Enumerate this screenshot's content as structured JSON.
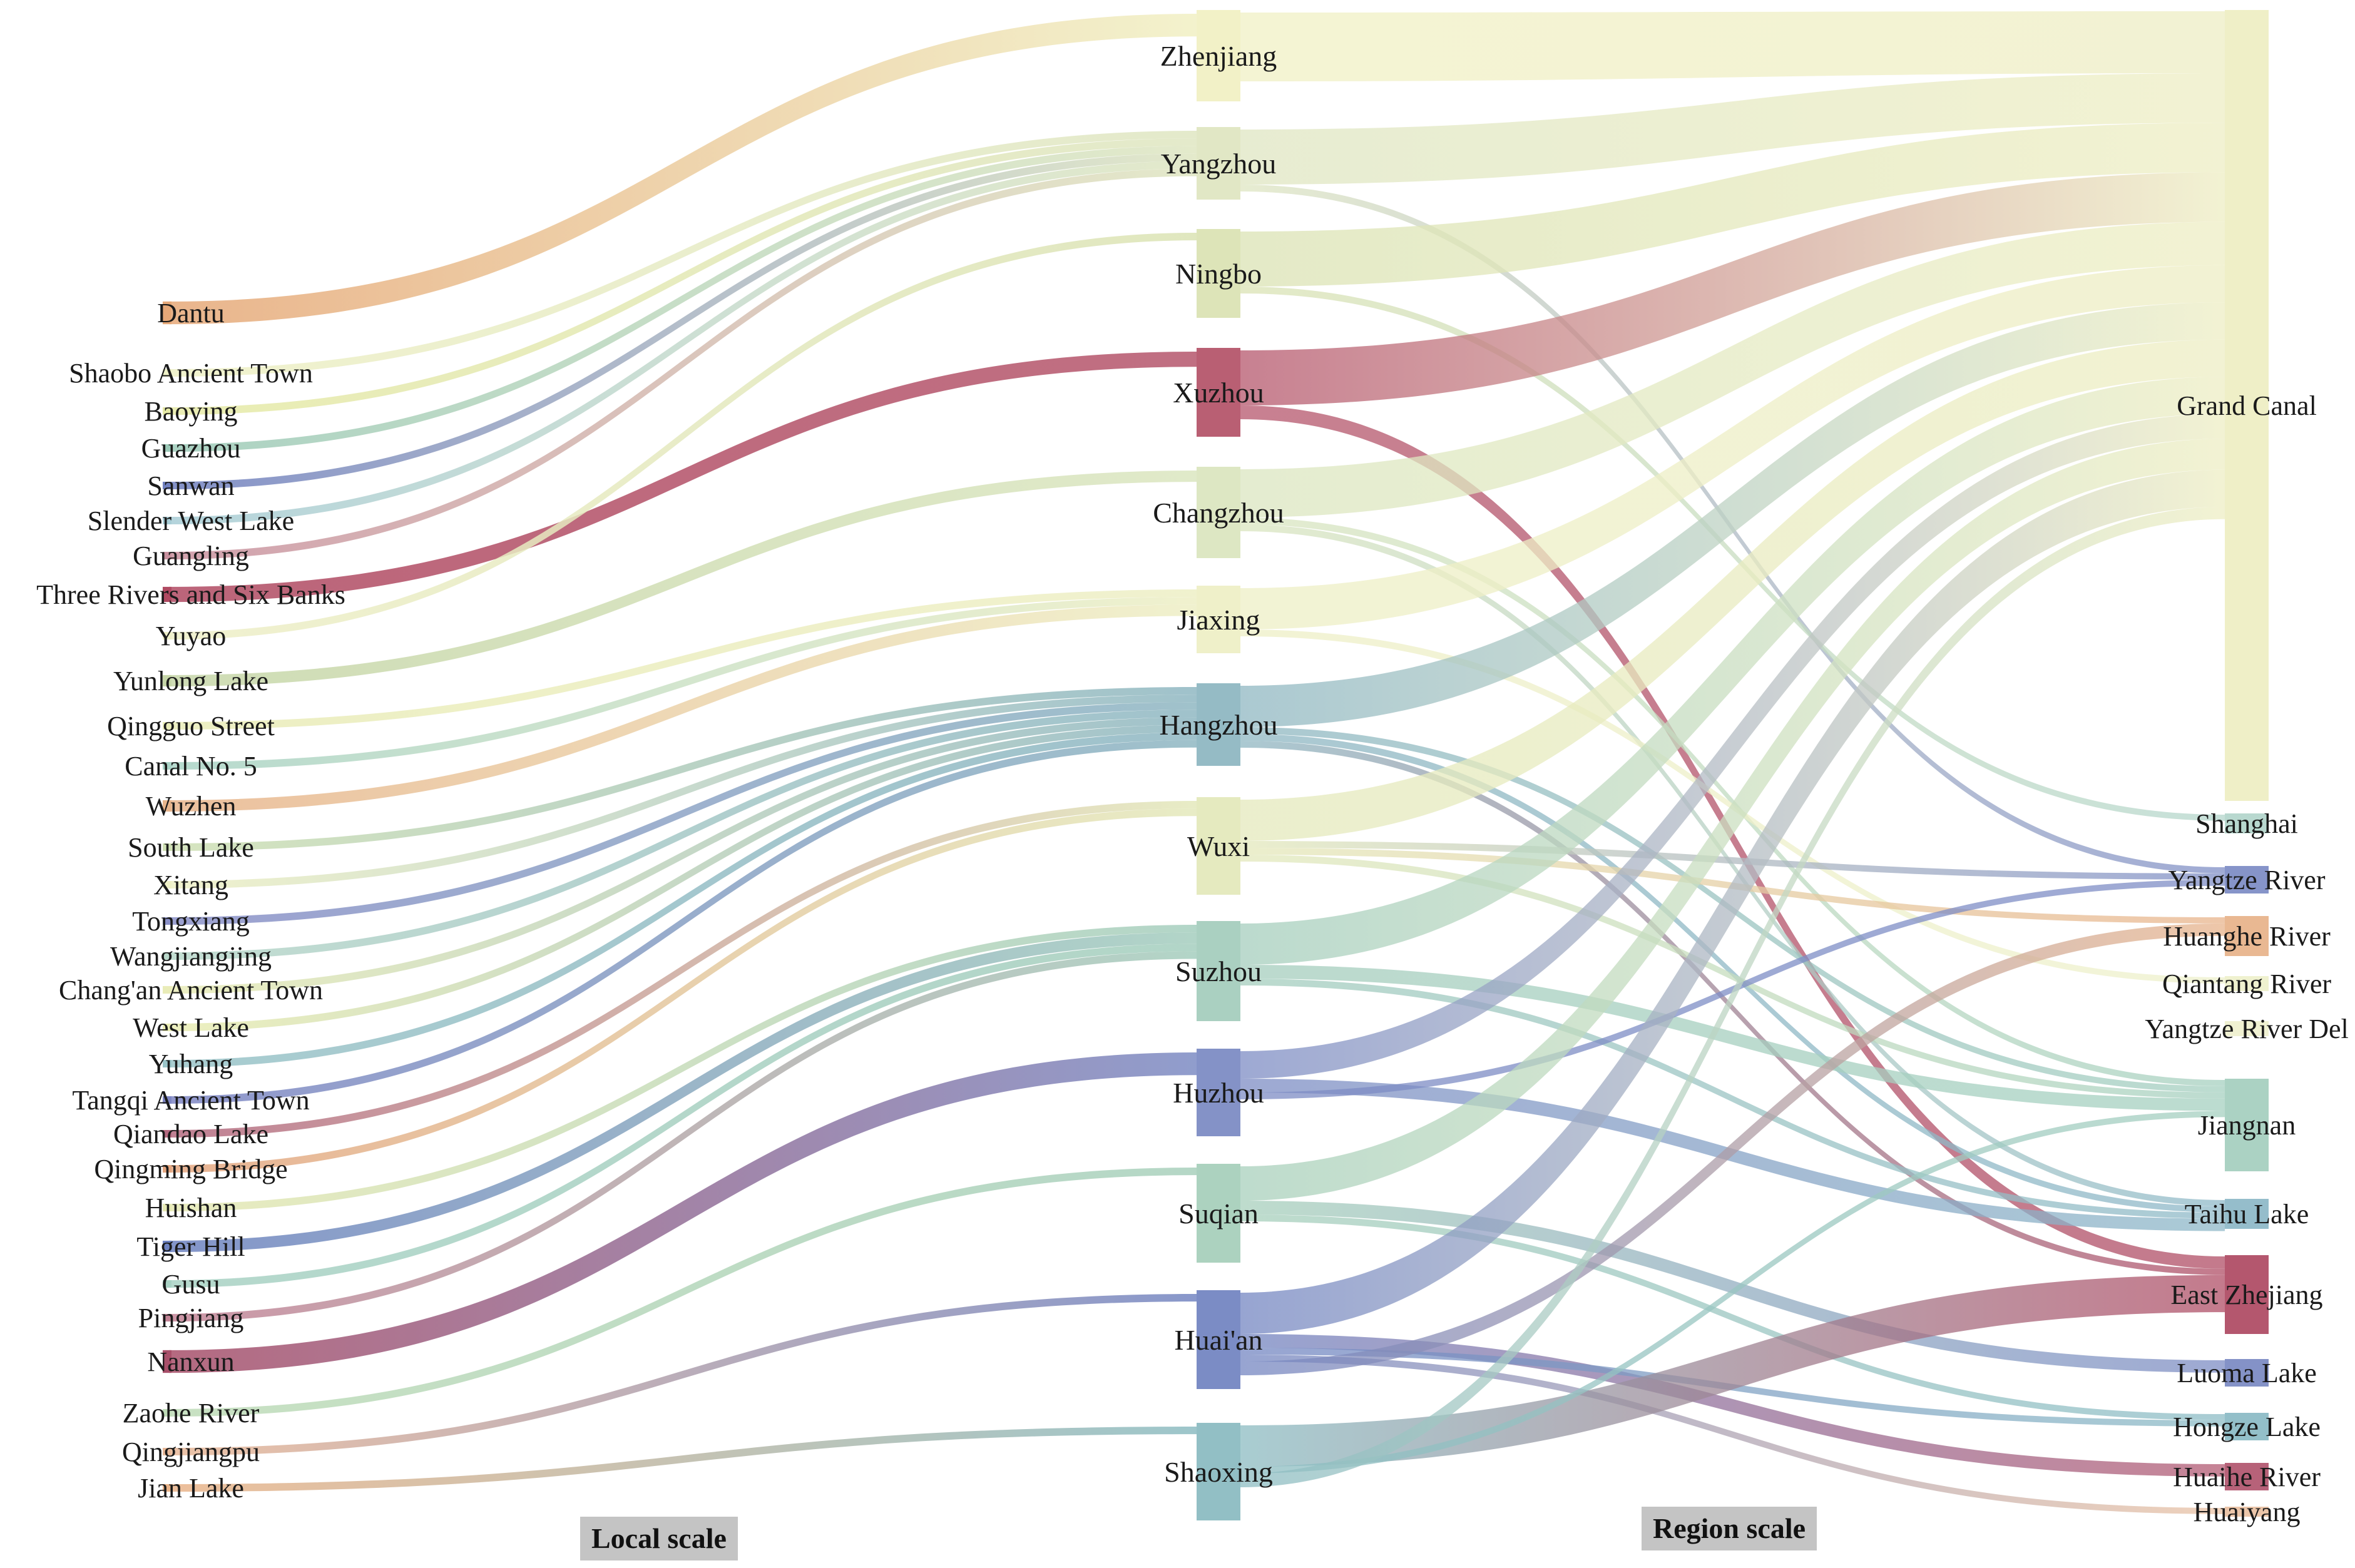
{
  "local_nodes": [
    {
      "id": "Dantu",
      "label": "Dantu",
      "color": "#e6a878"
    },
    {
      "id": "Shaobo",
      "label": "Shaobo Ancient Town",
      "color": "#eef0c6"
    },
    {
      "id": "Baoying",
      "label": "Baoying",
      "color": "#e6eaa6"
    },
    {
      "id": "Guazhou",
      "label": "Guazhou",
      "color": "#9ccab8"
    },
    {
      "id": "Sanwan",
      "label": "Sanwan",
      "color": "#6f7fbf"
    },
    {
      "id": "SlenderWestLake",
      "label": "Slender West Lake",
      "color": "#a8cdd6"
    },
    {
      "id": "Guangling",
      "label": "Guangling",
      "color": "#c9909e"
    },
    {
      "id": "ThreeRivers",
      "label": "Three Rivers and Six Banks",
      "color": "#b04a62"
    },
    {
      "id": "Yuyao",
      "label": "Yuyao",
      "color": "#eeefc8"
    },
    {
      "id": "YunlongLake",
      "label": "Yunlong Lake",
      "color": "#c6d6a8"
    },
    {
      "id": "QingguoStreet",
      "label": "Qingguo Street",
      "color": "#e9ecb8"
    },
    {
      "id": "CanalNo5",
      "label": "Canal No. 5",
      "color": "#a9d3c6"
    },
    {
      "id": "Wuzhen",
      "label": "Wuzhen",
      "color": "#e8b58c"
    },
    {
      "id": "SouthLake",
      "label": "South Lake",
      "color": "#cfe0b4"
    },
    {
      "id": "Xitang",
      "label": "Xitang",
      "color": "#eef0c6"
    },
    {
      "id": "Tongxiang",
      "label": "Tongxiang",
      "color": "#8a90c8"
    },
    {
      "id": "Wangjiangjing",
      "label": "Wangjiangjing",
      "color": "#b9d8ca"
    },
    {
      "id": "Changan",
      "label": "Chang'an Ancient Town",
      "color": "#e9ecb8"
    },
    {
      "id": "WestLake",
      "label": "West Lake",
      "color": "#eaedb4"
    },
    {
      "id": "Yuhang",
      "label": "Yuhang",
      "color": "#9ac4c8"
    },
    {
      "id": "Tangqi",
      "label": "Tangqi Ancient Town",
      "color": "#7e86c4"
    },
    {
      "id": "QiandaoLake",
      "label": "Qiandao Lake",
      "color": "#b46a80"
    },
    {
      "id": "QingmingBridge",
      "label": "Qingming Bridge",
      "color": "#e4a680"
    },
    {
      "id": "Huishan",
      "label": "Huishan",
      "color": "#e6e9b4"
    },
    {
      "id": "TigerHill",
      "label": "Tiger Hill",
      "color": "#6d82c0"
    },
    {
      "id": "Gusu",
      "label": "Gusu",
      "color": "#a8d2c4"
    },
    {
      "id": "Pingjiang",
      "label": "Pingjiang",
      "color": "#c38396"
    },
    {
      "id": "Nanxun",
      "label": "Nanxun",
      "color": "#a8506a"
    },
    {
      "id": "ZaoheRiver",
      "label": "Zaohe River",
      "color": "#bfdcb8"
    },
    {
      "id": "Qingjiangpu",
      "label": "Qingjiangpu",
      "color": "#e8b898"
    },
    {
      "id": "JianLake",
      "label": "Jian Lake",
      "color": "#eab48a"
    }
  ],
  "city_nodes": [
    {
      "id": "Zhenjiang",
      "label": "Zhenjiang",
      "color": "#f1f0c4"
    },
    {
      "id": "Yangzhou",
      "label": "Yangzhou",
      "color": "#dfe6c2"
    },
    {
      "id": "Ningbo",
      "label": "Ningbo",
      "color": "#dbe3b4"
    },
    {
      "id": "Xuzhou",
      "label": "Xuzhou",
      "color": "#b5566c"
    },
    {
      "id": "Changzhou",
      "label": "Changzhou",
      "color": "#dbe6c0"
    },
    {
      "id": "Jiaxing",
      "label": "Jiaxing",
      "color": "#eeefc6"
    },
    {
      "id": "Hangzhou",
      "label": "Hangzhou",
      "color": "#8fb7c2"
    },
    {
      "id": "Wuxi",
      "label": "Wuxi",
      "color": "#e4e9bc"
    },
    {
      "id": "Suzhou",
      "label": "Suzhou",
      "color": "#a5cebe"
    },
    {
      "id": "Huzhou",
      "label": "Huzhou",
      "color": "#7d8cc4"
    },
    {
      "id": "Suqian",
      "label": "Suqian",
      "color": "#a8d0bc"
    },
    {
      "id": "Huaian",
      "label": "Huai'an",
      "color": "#7486c2"
    },
    {
      "id": "Shaoxing",
      "label": "Shaoxing",
      "color": "#8cbcc2"
    }
  ],
  "region_nodes": [
    {
      "id": "GrandCanal",
      "label": "Grand Canal",
      "color": "#eeeec4"
    },
    {
      "id": "Shanghai",
      "label": "Shanghai",
      "color": "#b4d6cc"
    },
    {
      "id": "YangtzeRiver",
      "label": "Yangtze River",
      "color": "#7f8ec6"
    },
    {
      "id": "HuangheRiver",
      "label": "Huanghe River",
      "color": "#e8b48c"
    },
    {
      "id": "QiantangRiver",
      "label": "Qiantang River",
      "color": "#eef0cc"
    },
    {
      "id": "YangtzeDelta",
      "label": "Yangtze River Del",
      "color": "#eff0d0"
    },
    {
      "id": "Jiangnan",
      "label": "Jiangnan",
      "color": "#a6d0c0"
    },
    {
      "id": "TaihuLake",
      "label": "Taihu Lake",
      "color": "#8fb9c8"
    },
    {
      "id": "EastZhejiang",
      "label": "East Zhejiang",
      "color": "#b04e66"
    },
    {
      "id": "LuomaLake",
      "label": "Luoma Lake",
      "color": "#7d8cc4"
    },
    {
      "id": "HongzeLake",
      "label": "Hongze Lake",
      "color": "#8dbcc6"
    },
    {
      "id": "HuaiheRiver",
      "label": "Huaihe River",
      "color": "#b35a72"
    },
    {
      "id": "Huaiyang",
      "label": "Huaiyang",
      "color": "#eac2a4"
    }
  ],
  "local_to_city": [
    [
      "Dantu",
      "Zhenjiang",
      3
    ],
    [
      "Shaobo",
      "Yangzhou",
      1
    ],
    [
      "Baoying",
      "Yangzhou",
      1
    ],
    [
      "Guazhou",
      "Yangzhou",
      1
    ],
    [
      "Sanwan",
      "Yangzhou",
      1
    ],
    [
      "SlenderWestLake",
      "Yangzhou",
      1
    ],
    [
      "Guangling",
      "Yangzhou",
      1
    ],
    [
      "ThreeRivers",
      "Xuzhou",
      2
    ],
    [
      "Yuyao",
      "Ningbo",
      1
    ],
    [
      "YunlongLake",
      "Changzhou",
      1.5
    ],
    [
      "QingguoStreet",
      "Jiaxing",
      1
    ],
    [
      "CanalNo5",
      "Jiaxing",
      1
    ],
    [
      "Wuzhen",
      "Jiaxing",
      1.5
    ],
    [
      "SouthLake",
      "Hangzhou",
      1
    ],
    [
      "Xitang",
      "Hangzhou",
      1
    ],
    [
      "Tongxiang",
      "Hangzhou",
      1
    ],
    [
      "Wangjiangjing",
      "Hangzhou",
      1
    ],
    [
      "Changan",
      "Hangzhou",
      1
    ],
    [
      "WestLake",
      "Hangzhou",
      1
    ],
    [
      "Yuhang",
      "Hangzhou",
      1
    ],
    [
      "Tangqi",
      "Hangzhou",
      1
    ],
    [
      "QiandaoLake",
      "Wuxi",
      1
    ],
    [
      "QingmingBridge",
      "Wuxi",
      1
    ],
    [
      "Huishan",
      "Suzhou",
      1
    ],
    [
      "TigerHill",
      "Suzhou",
      1.5
    ],
    [
      "Gusu",
      "Suzhou",
      1
    ],
    [
      "Pingjiang",
      "Suzhou",
      1
    ],
    [
      "Nanxun",
      "Huzhou",
      3
    ],
    [
      "ZaoheRiver",
      "Suqian",
      1
    ],
    [
      "Qingjiangpu",
      "Huaian",
      1
    ],
    [
      "JianLake",
      "Shaoxing",
      1
    ]
  ],
  "city_to_region": [
    [
      "Zhenjiang",
      "GrandCanal",
      5
    ],
    [
      "Yangzhou",
      "GrandCanal",
      4
    ],
    [
      "Yangzhou",
      "YangtzeRiver",
      0.5
    ],
    [
      "Ningbo",
      "GrandCanal",
      4
    ],
    [
      "Ningbo",
      "Shanghai",
      0.5
    ],
    [
      "Xuzhou",
      "GrandCanal",
      4
    ],
    [
      "Xuzhou",
      "EastZhejiang",
      1
    ],
    [
      "Changzhou",
      "GrandCanal",
      3.5
    ],
    [
      "Changzhou",
      "Jiangnan",
      0.5
    ],
    [
      "Changzhou",
      "TaihuLake",
      0.5
    ],
    [
      "Jiaxing",
      "GrandCanal",
      3
    ],
    [
      "Jiaxing",
      "QiantangRiver",
      0.5
    ],
    [
      "Hangzhou",
      "GrandCanal",
      3
    ],
    [
      "Hangzhou",
      "Jiangnan",
      0.5
    ],
    [
      "Hangzhou",
      "TaihuLake",
      0.5
    ],
    [
      "Hangzhou",
      "EastZhejiang",
      0.5
    ],
    [
      "Wuxi",
      "GrandCanal",
      3
    ],
    [
      "Wuxi",
      "YangtzeRiver",
      0.5
    ],
    [
      "Wuxi",
      "HuangheRiver",
      0.5
    ],
    [
      "Wuxi",
      "Jiangnan",
      0.5
    ],
    [
      "Suzhou",
      "GrandCanal",
      3
    ],
    [
      "Suzhou",
      "Jiangnan",
      1
    ],
    [
      "Suzhou",
      "TaihuLake",
      0.5
    ],
    [
      "Huzhou",
      "GrandCanal",
      2
    ],
    [
      "Huzhou",
      "TaihuLake",
      1
    ],
    [
      "Huzhou",
      "YangtzeRiver",
      0.5
    ],
    [
      "Suqian",
      "GrandCanal",
      2.5
    ],
    [
      "Suqian",
      "LuomaLake",
      1
    ],
    [
      "Suqian",
      "HongzeLake",
      0.5
    ],
    [
      "Huaian",
      "GrandCanal",
      3
    ],
    [
      "Huaian",
      "HuaiheRiver",
      1
    ],
    [
      "Huaian",
      "HongzeLake",
      0.5
    ],
    [
      "Huaian",
      "Huaiyang",
      0.5
    ],
    [
      "Huaian",
      "HuangheRiver",
      1
    ],
    [
      "Shaoxing",
      "EastZhejiang",
      3
    ],
    [
      "Shaoxing",
      "Jiangnan",
      0.5
    ],
    [
      "Shaoxing",
      "GrandCanal",
      1
    ]
  ],
  "scale_labels": {
    "local": "Local scale",
    "region": "Region scale"
  }
}
